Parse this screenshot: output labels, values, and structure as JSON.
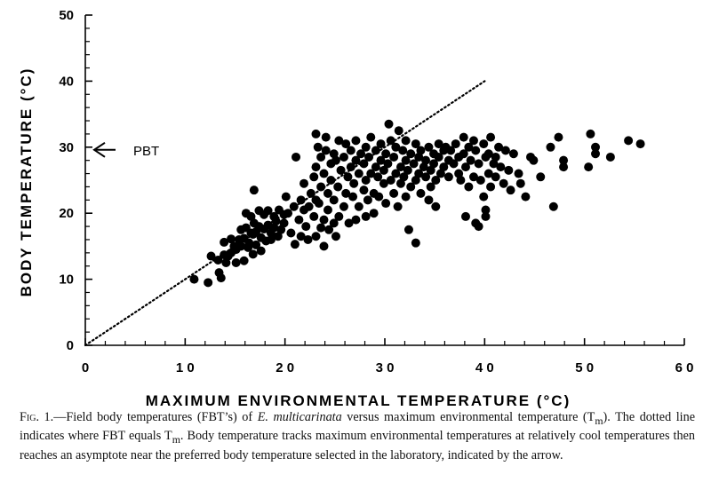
{
  "chart_data": {
    "type": "scatter",
    "title": "",
    "xlabel": "MAXIMUM ENVIRONMENTAL TEMPERATURE (°C)",
    "ylabel": "BODY TEMPERATURE (°C)",
    "xlim": [
      0,
      60
    ],
    "ylim": [
      0,
      50
    ],
    "x_ticks": [
      0,
      10,
      20,
      30,
      40,
      50,
      60
    ],
    "x_tick_labels": [
      "0",
      "1 0",
      "2 0",
      "3 0",
      "4 0",
      "5 0",
      "6 0"
    ],
    "y_ticks": [
      0,
      10,
      20,
      30,
      40,
      50
    ],
    "y_tick_labels": [
      "0",
      "10",
      "20",
      "30",
      "40",
      "50"
    ],
    "grid": false,
    "reference_line": {
      "style": "dotted",
      "from": [
        0,
        0
      ],
      "to": [
        40,
        40
      ]
    },
    "annotation": {
      "label": "PBT",
      "value": 29.6,
      "symbol": "arrow-left"
    },
    "series": [
      {
        "points": [
          [
            10.9,
            10.0
          ],
          [
            12.3,
            9.5
          ],
          [
            12.6,
            13.5
          ],
          [
            13.3,
            12.9
          ],
          [
            13.4,
            11.0
          ],
          [
            13.6,
            10.2
          ],
          [
            13.9,
            13.7
          ],
          [
            13.9,
            15.6
          ],
          [
            14.1,
            12.5
          ],
          [
            14.3,
            13.5
          ],
          [
            14.6,
            14.0
          ],
          [
            14.6,
            16.1
          ],
          [
            14.9,
            15.0
          ],
          [
            15.1,
            12.5
          ],
          [
            15.1,
            14.5
          ],
          [
            15.4,
            16.0
          ],
          [
            15.6,
            15.0
          ],
          [
            15.6,
            17.5
          ],
          [
            15.9,
            12.8
          ],
          [
            15.9,
            16.2
          ],
          [
            16.1,
            17.8
          ],
          [
            16.1,
            20.0
          ],
          [
            16.3,
            14.8
          ],
          [
            16.4,
            15.5
          ],
          [
            16.6,
            17.0
          ],
          [
            16.6,
            19.5
          ],
          [
            16.8,
            13.8
          ],
          [
            16.8,
            16.8
          ],
          [
            16.9,
            18.5
          ],
          [
            16.9,
            23.5
          ],
          [
            17.1,
            15.2
          ],
          [
            17.1,
            17.2
          ],
          [
            17.4,
            18.0
          ],
          [
            17.4,
            20.4
          ],
          [
            17.6,
            14.3
          ],
          [
            17.6,
            16.3
          ],
          [
            17.9,
            17.6
          ],
          [
            17.9,
            19.8
          ],
          [
            18.1,
            15.8
          ],
          [
            18.3,
            18.2
          ],
          [
            18.3,
            20.4
          ],
          [
            18.6,
            16.0
          ],
          [
            18.6,
            17.0
          ],
          [
            18.9,
            17.8
          ],
          [
            18.9,
            19.5
          ],
          [
            19.1,
            18.8
          ],
          [
            19.3,
            16.5
          ],
          [
            19.4,
            20.5
          ],
          [
            19.6,
            17.5
          ],
          [
            19.9,
            18.5
          ],
          [
            19.9,
            19.8
          ],
          [
            20.1,
            22.5
          ],
          [
            20.3,
            20.0
          ],
          [
            20.6,
            17.0
          ],
          [
            20.9,
            21.0
          ],
          [
            21.0,
            15.3
          ],
          [
            21.1,
            28.5
          ],
          [
            21.4,
            19.0
          ],
          [
            21.6,
            16.5
          ],
          [
            21.6,
            22.0
          ],
          [
            21.9,
            20.5
          ],
          [
            21.9,
            24.5
          ],
          [
            22.1,
            18.0
          ],
          [
            22.3,
            16.0
          ],
          [
            22.4,
            21.0
          ],
          [
            22.6,
            23.0
          ],
          [
            22.9,
            19.5
          ],
          [
            22.9,
            25.5
          ],
          [
            23.1,
            16.5
          ],
          [
            23.1,
            22.0
          ],
          [
            23.1,
            27.0
          ],
          [
            23.1,
            32.0
          ],
          [
            23.3,
            30.0
          ],
          [
            23.4,
            21.5
          ],
          [
            23.6,
            17.8
          ],
          [
            23.6,
            24.0
          ],
          [
            23.6,
            28.5
          ],
          [
            23.9,
            15.0
          ],
          [
            23.9,
            19.0
          ],
          [
            23.9,
            26.0
          ],
          [
            24.1,
            29.5
          ],
          [
            24.1,
            31.5
          ],
          [
            24.3,
            23.0
          ],
          [
            24.3,
            20.5
          ],
          [
            24.4,
            17.5
          ],
          [
            24.6,
            27.5
          ],
          [
            24.6,
            25.0
          ],
          [
            24.9,
            18.5
          ],
          [
            24.9,
            29.0
          ],
          [
            24.9,
            22.0
          ],
          [
            25.1,
            28.0
          ],
          [
            25.1,
            16.5
          ],
          [
            25.3,
            24.0
          ],
          [
            25.4,
            19.5
          ],
          [
            25.4,
            31.0
          ],
          [
            25.6,
            26.5
          ],
          [
            25.9,
            21.0
          ],
          [
            25.9,
            28.5
          ],
          [
            26.1,
            23.0
          ],
          [
            26.1,
            30.5
          ],
          [
            26.3,
            25.5
          ],
          [
            26.4,
            18.5
          ],
          [
            26.6,
            27.0
          ],
          [
            26.6,
            29.5
          ],
          [
            26.8,
            22.5
          ],
          [
            26.9,
            24.5
          ],
          [
            27.1,
            19.0
          ],
          [
            27.1,
            28.0
          ],
          [
            27.1,
            31.0
          ],
          [
            27.4,
            26.0
          ],
          [
            27.4,
            21.0
          ],
          [
            27.6,
            29.0
          ],
          [
            27.9,
            23.5
          ],
          [
            27.9,
            27.5
          ],
          [
            28.1,
            19.5
          ],
          [
            28.1,
            25.0
          ],
          [
            28.1,
            30.0
          ],
          [
            28.3,
            22.0
          ],
          [
            28.4,
            28.5
          ],
          [
            28.6,
            26.0
          ],
          [
            28.6,
            31.5
          ],
          [
            28.9,
            23.0
          ],
          [
            28.9,
            20.0
          ],
          [
            29.1,
            27.0
          ],
          [
            29.1,
            29.5
          ],
          [
            29.3,
            25.5
          ],
          [
            29.4,
            22.5
          ],
          [
            29.6,
            28.0
          ],
          [
            29.6,
            30.5
          ],
          [
            29.9,
            24.5
          ],
          [
            29.9,
            26.5
          ],
          [
            30.1,
            21.5
          ],
          [
            30.1,
            29.0
          ],
          [
            30.3,
            27.5
          ],
          [
            30.4,
            33.5
          ],
          [
            30.6,
            25.0
          ],
          [
            30.6,
            31.0
          ],
          [
            30.9,
            23.0
          ],
          [
            30.9,
            28.5
          ],
          [
            31.1,
            26.0
          ],
          [
            31.1,
            30.0
          ],
          [
            31.3,
            21.0
          ],
          [
            31.4,
            32.5
          ],
          [
            31.6,
            27.0
          ],
          [
            31.6,
            24.5
          ],
          [
            31.8,
            29.5
          ],
          [
            31.9,
            25.5
          ],
          [
            32.1,
            28.0
          ],
          [
            32.1,
            31.0
          ],
          [
            32.1,
            22.5
          ],
          [
            32.3,
            26.5
          ],
          [
            32.4,
            17.5
          ],
          [
            32.6,
            29.0
          ],
          [
            32.6,
            24.0
          ],
          [
            32.9,
            27.5
          ],
          [
            33.1,
            15.5
          ],
          [
            33.1,
            30.5
          ],
          [
            33.1,
            25.0
          ],
          [
            33.4,
            28.5
          ],
          [
            33.4,
            26.0
          ],
          [
            33.6,
            23.0
          ],
          [
            33.6,
            29.5
          ],
          [
            33.9,
            27.0
          ],
          [
            34.1,
            25.5
          ],
          [
            34.1,
            28.0
          ],
          [
            34.4,
            22.0
          ],
          [
            34.4,
            30.0
          ],
          [
            34.6,
            26.5
          ],
          [
            34.6,
            24.0
          ],
          [
            34.9,
            29.0
          ],
          [
            34.9,
            27.5
          ],
          [
            35.1,
            21.0
          ],
          [
            35.1,
            25.0
          ],
          [
            35.4,
            28.5
          ],
          [
            35.4,
            30.5
          ],
          [
            35.6,
            26.0
          ],
          [
            35.9,
            29.5
          ],
          [
            35.9,
            27.0
          ],
          [
            36.1,
            30.0
          ],
          [
            36.4,
            28.0
          ],
          [
            36.4,
            25.5
          ],
          [
            36.6,
            29.5
          ],
          [
            36.9,
            27.5
          ],
          [
            37.1,
            30.5
          ],
          [
            37.4,
            26.0
          ],
          [
            37.4,
            28.5
          ],
          [
            37.6,
            25.0
          ],
          [
            37.9,
            29.0
          ],
          [
            37.9,
            31.5
          ],
          [
            38.1,
            19.5
          ],
          [
            38.1,
            27.0
          ],
          [
            38.4,
            30.0
          ],
          [
            38.4,
            24.0
          ],
          [
            38.6,
            28.0
          ],
          [
            38.9,
            25.5
          ],
          [
            38.9,
            31.0
          ],
          [
            39.1,
            18.5
          ],
          [
            39.1,
            29.5
          ],
          [
            39.4,
            18.0
          ],
          [
            39.4,
            27.5
          ],
          [
            39.6,
            25.0
          ],
          [
            39.9,
            30.5
          ],
          [
            39.9,
            22.5
          ],
          [
            40.1,
            19.5
          ],
          [
            40.1,
            28.5
          ],
          [
            40.1,
            20.5
          ],
          [
            40.4,
            26.0
          ],
          [
            40.4,
            29.0
          ],
          [
            40.6,
            24.0
          ],
          [
            40.6,
            31.5
          ],
          [
            40.9,
            27.5
          ],
          [
            41.1,
            28.5
          ],
          [
            41.1,
            25.5
          ],
          [
            41.4,
            30.0
          ],
          [
            41.6,
            27.0
          ],
          [
            41.9,
            24.5
          ],
          [
            42.1,
            29.5
          ],
          [
            42.4,
            26.5
          ],
          [
            42.6,
            23.5
          ],
          [
            42.9,
            29.0
          ],
          [
            43.4,
            26.0
          ],
          [
            43.6,
            24.5
          ],
          [
            44.1,
            22.5
          ],
          [
            44.6,
            28.5
          ],
          [
            44.9,
            28.0
          ],
          [
            45.6,
            25.5
          ],
          [
            46.6,
            30.0
          ],
          [
            46.9,
            21.0
          ],
          [
            47.4,
            31.5
          ],
          [
            47.9,
            27.0
          ],
          [
            47.9,
            28.0
          ],
          [
            50.4,
            27.0
          ],
          [
            50.6,
            32.0
          ],
          [
            51.1,
            30.0
          ],
          [
            51.1,
            29.0
          ],
          [
            52.6,
            28.5
          ],
          [
            54.4,
            31.0
          ],
          [
            55.6,
            30.5
          ]
        ]
      }
    ]
  },
  "caption": {
    "fig_label": "Fig. 1.",
    "text_1": "—Field body temperatures (FBT’s) of ",
    "species": "E. multicarinata",
    "text_2": " versus maximum environmental temperature (T",
    "sub_1": "m",
    "text_3": "). The dotted line indicates where FBT equals T",
    "sub_2": "m",
    "text_4": ". Body temperature tracks maximum environmental temperatures at relatively cool temperatures then reaches an asymptote near the preferred body temperature selected in the laboratory, indicated by the arrow."
  },
  "colors": {
    "ink": "#000000",
    "background": "#ffffff"
  }
}
